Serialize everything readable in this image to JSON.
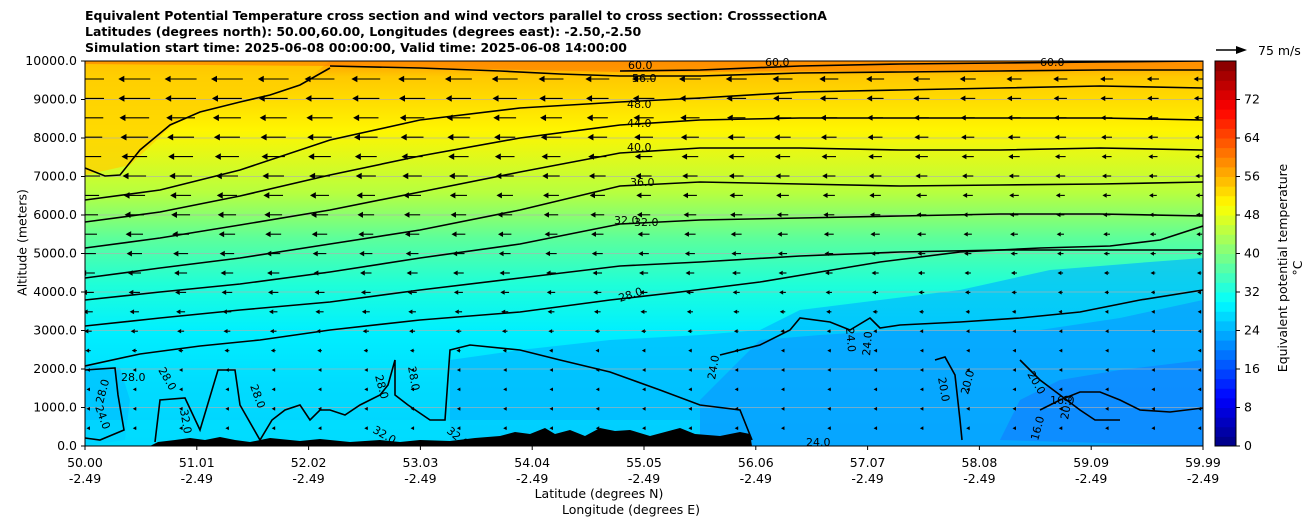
{
  "chart_data": {
    "type": "contourf",
    "title_lines": [
      "Equivalent Potential Temperature cross section and wind vectors parallel to cross section: CrosssectionA",
      "Latitudes (degrees north): 50.00,60.00, Longitudes (degrees east): -2.50,-2.50",
      "Simulation start time: 2025-06-08 00:00:00, Valid time: 2025-06-08 14:00:00"
    ],
    "ylabel": "Altitude (meters)",
    "xlabel_lat": "Latitude (degrees N)",
    "xlabel_lon": "Longitude (degrees E)",
    "ylim": [
      0,
      10000
    ],
    "y_ticks": [
      "0.0",
      "1000.0",
      "2000.0",
      "3000.0",
      "4000.0",
      "5000.0",
      "6000.0",
      "7000.0",
      "8000.0",
      "9000.0",
      "10000.0"
    ],
    "x_ticks_lat": [
      "50.00",
      "51.01",
      "52.02",
      "53.03",
      "54.04",
      "55.05",
      "56.06",
      "57.07",
      "58.08",
      "59.09",
      "59.99"
    ],
    "x_ticks_lon": [
      "-2.49",
      "-2.49",
      "-2.49",
      "-2.49",
      "-2.49",
      "-2.49",
      "-2.49",
      "-2.49",
      "-2.49",
      "-2.49",
      "-2.49"
    ],
    "colorbar": {
      "label": "Equivalent potential temperature $^\\circ$C",
      "range": [
        0,
        80
      ],
      "ticks": [
        "0",
        "8",
        "16",
        "24",
        "32",
        "40",
        "48",
        "56",
        "64",
        "72"
      ]
    },
    "reference_vector_label": "75 m/s",
    "contour_labels": [
      "60.0",
      "56.0",
      "48.0",
      "44.0",
      "40.0",
      "36.0",
      "32.0",
      "32.0",
      "28.0",
      "28.0",
      "28.0",
      "28.0",
      "28.0",
      "28.0",
      "28.0",
      "24.0",
      "24.0",
      "24.0",
      "24.0",
      "24.0",
      "32.0",
      "32.0",
      "32.0",
      "20.0",
      "20.0",
      "20.0",
      "20.0",
      "16.0",
      "16.0",
      "60.0",
      "60.0"
    ]
  },
  "colors": {
    "terrain": "#000000",
    "contour": "#000000"
  }
}
